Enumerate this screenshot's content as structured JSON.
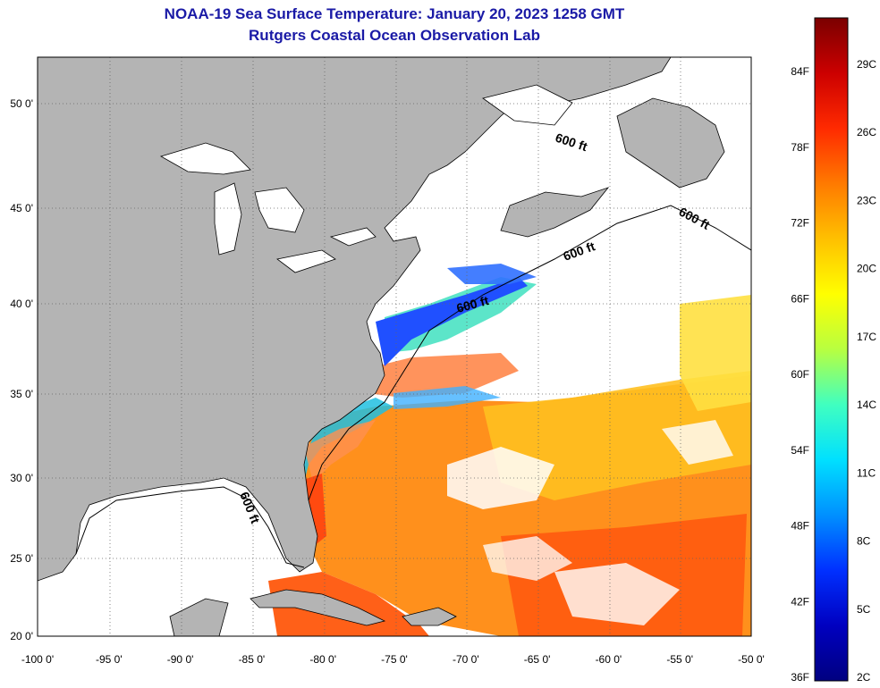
{
  "title_line1": "NOAA-19 Sea Surface Temperature:  January 20, 2023 1258 GMT",
  "title_line2": "Rutgers Coastal Ocean Observation Lab",
  "lat_labels": [
    "50 0'",
    "45 0'",
    "40 0'",
    "35 0'",
    "30 0'",
    "25 0'",
    "20 0'"
  ],
  "lon_labels": [
    "-100 0'",
    "-95 0'",
    "-90 0'",
    "-85 0'",
    "-80 0'",
    "-75 0'",
    "-70 0'",
    "-65 0'",
    "-60 0'",
    "-55 0'",
    "-50 0'"
  ],
  "contour_label": "600 ft",
  "colorbar": {
    "f_labels": [
      "84F",
      "78F",
      "72F",
      "66F",
      "60F",
      "54F",
      "48F",
      "42F",
      "36F"
    ],
    "c_labels": [
      "29C",
      "26C",
      "23C",
      "20C",
      "17C",
      "14C",
      "11C",
      "8C",
      "5C",
      "2C"
    ],
    "gradient": [
      "#7a0000",
      "#cc0000",
      "#ff2a00",
      "#ff7a00",
      "#ffc000",
      "#ffff00",
      "#b8ff40",
      "#40ffc0",
      "#00e0ff",
      "#0090ff",
      "#0030ff",
      "#0000c0",
      "#000080"
    ]
  },
  "colors": {
    "land": "#b4b4b4",
    "ocean_nodata": "#ffffff",
    "title": "#1a1aa6"
  }
}
